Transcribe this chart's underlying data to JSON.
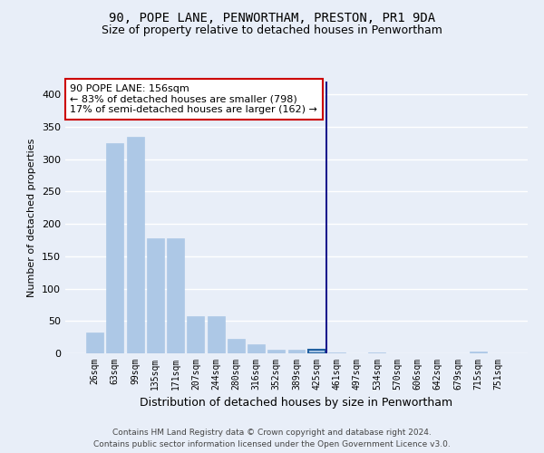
{
  "title": "90, POPE LANE, PENWORTHAM, PRESTON, PR1 9DA",
  "subtitle": "Size of property relative to detached houses in Penwortham",
  "xlabel": "Distribution of detached houses by size in Penwortham",
  "ylabel": "Number of detached properties",
  "categories": [
    "26sqm",
    "63sqm",
    "99sqm",
    "135sqm",
    "171sqm",
    "207sqm",
    "244sqm",
    "280sqm",
    "316sqm",
    "352sqm",
    "389sqm",
    "425sqm",
    "461sqm",
    "497sqm",
    "534sqm",
    "570sqm",
    "606sqm",
    "642sqm",
    "679sqm",
    "715sqm",
    "751sqm"
  ],
  "values": [
    32,
    325,
    335,
    178,
    178,
    57,
    57,
    23,
    14,
    6,
    5,
    5,
    2,
    0,
    2,
    0,
    0,
    0,
    0,
    3,
    0
  ],
  "bar_color": "#adc8e6",
  "bar_edge_color": "#adc8e6",
  "highlight_bar_index": 11,
  "highlight_bar_edge_color": "#2060a0",
  "property_line_x": 11.5,
  "annotation_text": "90 POPE LANE: 156sqm\n← 83% of detached houses are smaller (798)\n17% of semi-detached houses are larger (162) →",
  "annotation_box_facecolor": "#ffffff",
  "annotation_box_edgecolor": "#cc0000",
  "footer_line1": "Contains HM Land Registry data © Crown copyright and database right 2024.",
  "footer_line2": "Contains public sector information licensed under the Open Government Licence v3.0.",
  "ylim": [
    0,
    420
  ],
  "yticks": [
    0,
    50,
    100,
    150,
    200,
    250,
    300,
    350,
    400
  ],
  "bg_color": "#e8eef8",
  "grid_color": "#ffffff",
  "title_fontsize": 10,
  "subtitle_fontsize": 9,
  "ylabel_fontsize": 8,
  "xlabel_fontsize": 9
}
